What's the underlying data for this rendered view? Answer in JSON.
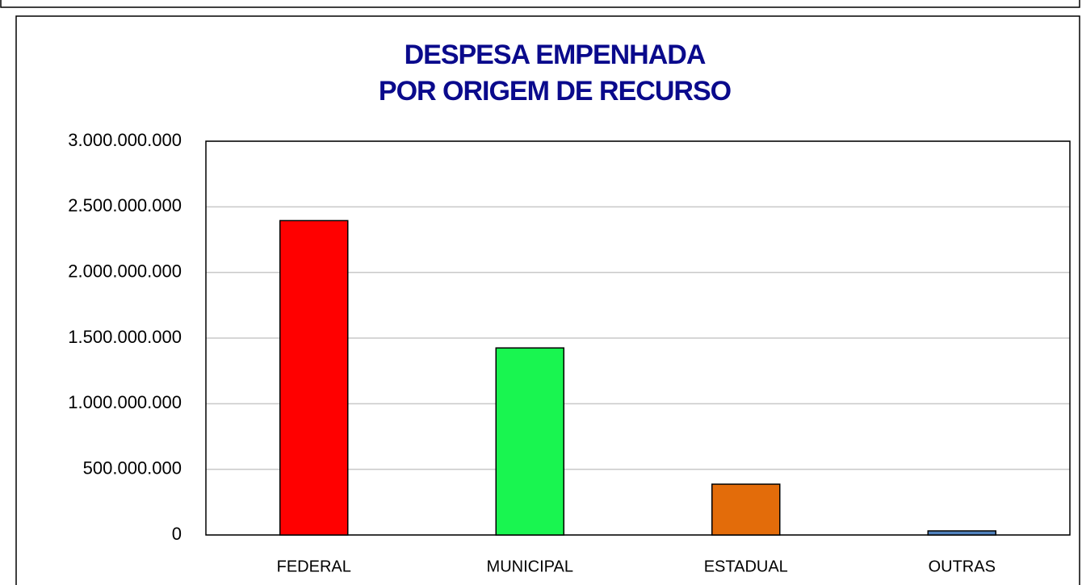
{
  "chart_data": {
    "type": "bar",
    "title": [
      "DESPESA EMPENHADA",
      "POR ORIGEM DE RECURSO"
    ],
    "categories": [
      "FEDERAL",
      "MUNICIPAL",
      "ESTADUAL",
      "OUTRAS"
    ],
    "values": [
      2395000000,
      1425000000,
      387000000,
      31000000
    ],
    "colors": [
      "#ff0000",
      "#19f550",
      "#e36c0a",
      "#4f81bd"
    ],
    "ylim": [
      0,
      3000000000
    ],
    "yticks": [
      0,
      {
        "value": 500000000,
        "label": "500.000.000"
      },
      {
        "value": 1000000000,
        "label": "1.000.000.000"
      },
      {
        "value": 1500000000,
        "label": "1.500.000.000"
      },
      {
        "value": 2000000000,
        "label": "2.000.000.000"
      },
      {
        "value": 2500000000,
        "label": "2.500.000.000"
      },
      {
        "value": 3000000000,
        "label": "3.000.000.000"
      }
    ],
    "grid": true
  }
}
